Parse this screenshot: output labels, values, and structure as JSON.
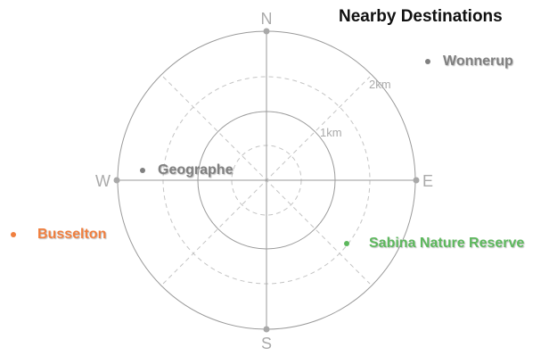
{
  "title": "Nearby Destinations",
  "compass": {
    "north": "N",
    "south": "S",
    "east": "E",
    "west": "W"
  },
  "rings": {
    "inner_label": "1km",
    "outer_label": "2km"
  },
  "destinations": [
    {
      "name": "Wonnerup",
      "color": "#808080"
    },
    {
      "name": "Geographe",
      "color": "#808080"
    },
    {
      "name": "Busselton",
      "color": "#F07F3F"
    },
    {
      "name": "Sabina Nature Reserve",
      "color": "#5DB85D"
    }
  ],
  "colors": {
    "ring": "#9a9a9a",
    "dashed": "#c4c4c4",
    "axis": "#9a9a9a",
    "label": "#aaaaaa"
  }
}
